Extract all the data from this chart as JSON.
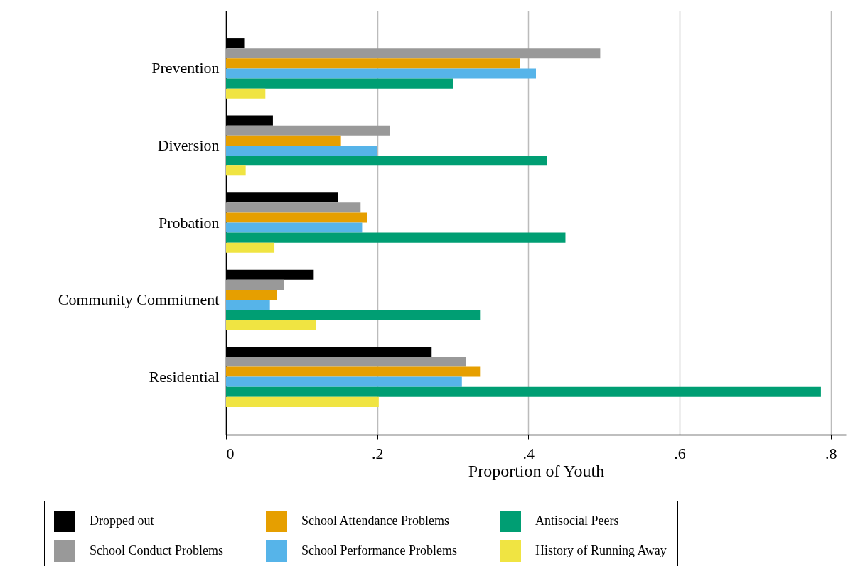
{
  "chart_data": {
    "type": "bar",
    "orientation": "horizontal",
    "xlabel": "Proportion of Youth",
    "categories": [
      "Prevention",
      "Diversion",
      "Probation",
      "Community Commitment",
      "Residential"
    ],
    "series": [
      {
        "name": "Dropped out",
        "color": "#000000",
        "values": [
          0.024,
          0.062,
          0.148,
          0.116,
          0.272
        ]
      },
      {
        "name": "School Conduct Problems",
        "color": "#999999",
        "values": [
          0.495,
          0.217,
          0.178,
          0.077,
          0.317
        ]
      },
      {
        "name": "School Attendance Problems",
        "color": "#e69f00",
        "values": [
          0.389,
          0.152,
          0.187,
          0.067,
          0.336
        ]
      },
      {
        "name": "School Performance Problems",
        "color": "#56b4e9",
        "values": [
          0.41,
          0.2,
          0.18,
          0.058,
          0.312
        ]
      },
      {
        "name": "Antisocial Peers",
        "color": "#009e73",
        "values": [
          0.3,
          0.425,
          0.449,
          0.336,
          0.787
        ]
      },
      {
        "name": "History of Running Away",
        "color": "#f0e442",
        "values": [
          0.052,
          0.026,
          0.064,
          0.119,
          0.202
        ]
      }
    ],
    "xlim": [
      0,
      0.82
    ],
    "xticks": [
      0,
      {
        "value": 0.2,
        "label": ".2"
      },
      {
        "value": 0.4,
        "label": ".4"
      },
      {
        "value": 0.6,
        "label": ".6"
      },
      {
        "value": 0.8,
        "label": ".8"
      }
    ],
    "grid": "x",
    "legend": "bottom"
  }
}
